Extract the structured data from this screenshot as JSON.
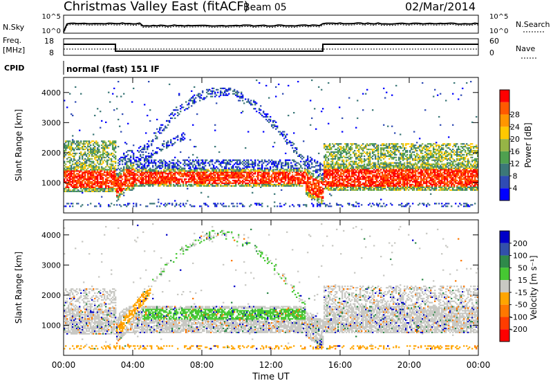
{
  "header": {
    "title": "Christmas Valley East (fitACF)",
    "beam": "Beam 05",
    "date": "02/Mar/2014"
  },
  "summary": {
    "nsky_label": "N.Sky",
    "nsky_ticks": [
      "10^5",
      "10^0"
    ],
    "nsearch_label": "N.Search",
    "nsearch_ticks": [
      "10^5",
      "10^0"
    ],
    "freq_label": "Freq.",
    "freq_unit": "[MHz]",
    "freq_ticks": [
      "18",
      "8"
    ],
    "nave_label": "Nave",
    "nave_ticks": [
      "60",
      "0"
    ],
    "cpid_label": "CPID",
    "cpid_value": "normal (fast) 151 IF"
  },
  "chart_data": [
    {
      "type": "heatmap",
      "panel": "power",
      "ylabel": "Slant Range [km]",
      "xlabel": "Time UT",
      "ylim": [
        0,
        4500
      ],
      "yticks": [
        1000,
        2000,
        3000,
        4000
      ],
      "xlim": [
        "00:00",
        "24:00"
      ],
      "xtick_labels": [
        "00:00",
        "04:00",
        "08:00",
        "12:00",
        "16:00",
        "20:00",
        "00:00"
      ],
      "colorbar": {
        "label": "Power [dB]",
        "ticks": [
          4,
          8,
          12,
          16,
          20,
          24,
          28
        ],
        "colors": [
          "#0000ff",
          "#2f4bb4",
          "#3c7878",
          "#4fa04f",
          "#96b446",
          "#ffc800",
          "#ff9600",
          "#ff5a00",
          "#ff0000"
        ]
      }
    },
    {
      "type": "heatmap",
      "panel": "velocity",
      "ylabel": "Slant Range [km]",
      "xlabel": "Time UT",
      "ylim": [
        0,
        4500
      ],
      "yticks": [
        1000,
        2000,
        3000,
        4000
      ],
      "xlim": [
        "00:00",
        "24:00"
      ],
      "xtick_labels": [
        "00:00",
        "04:00",
        "08:00",
        "12:00",
        "16:00",
        "20:00",
        "00:00"
      ],
      "colorbar": {
        "label": "Velocity [m s⁻¹]",
        "ticks": [
          200,
          100,
          50,
          15,
          -15,
          -50,
          -100,
          -200
        ],
        "colors": [
          "#0000c8",
          "#3250aa",
          "#2f8a4a",
          "#46c832",
          "#c8c8c3",
          "#ffa500",
          "#ff7800",
          "#ff3c00",
          "#ff0000"
        ]
      }
    }
  ]
}
